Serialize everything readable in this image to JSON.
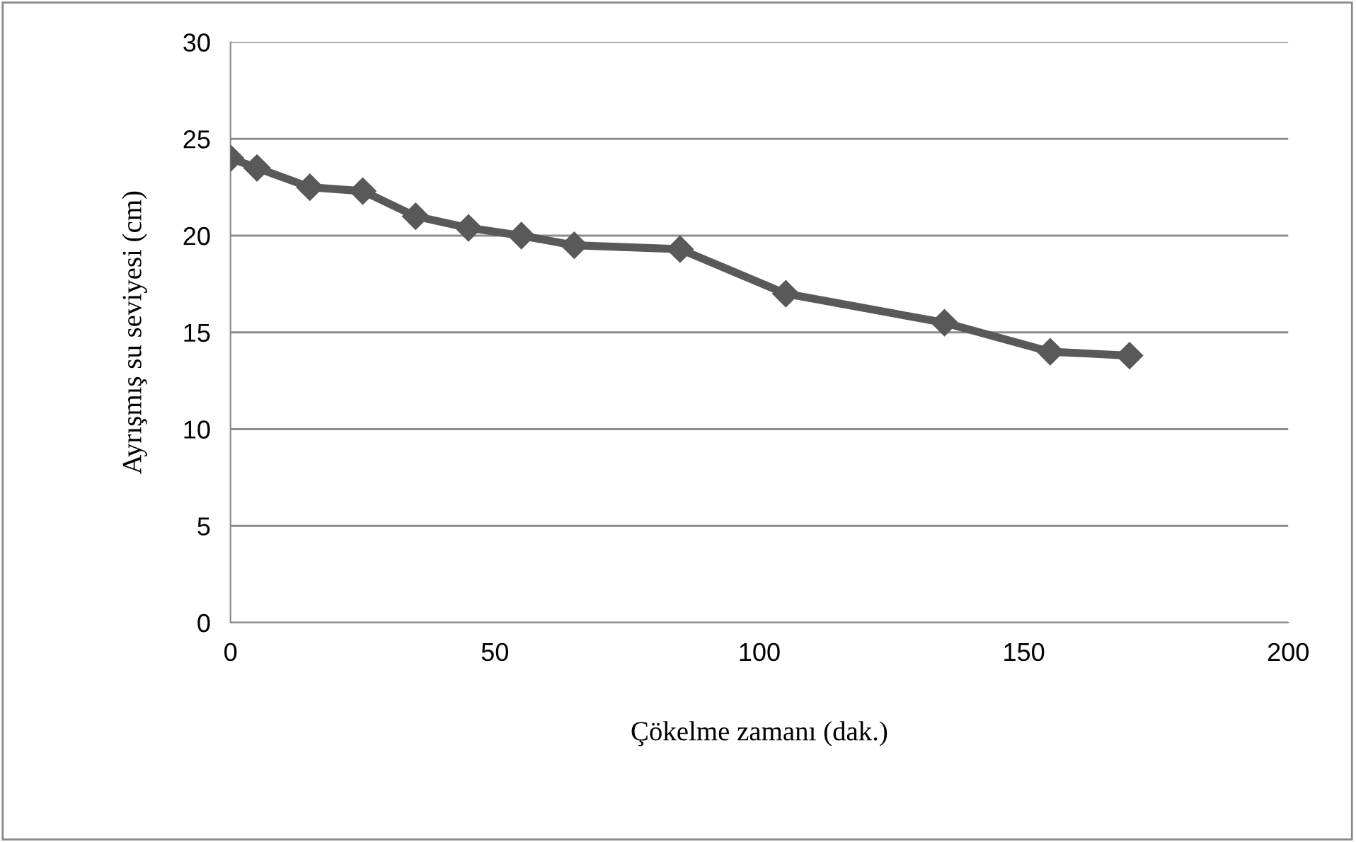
{
  "chart_data": {
    "type": "line",
    "xlabel": "Çökelme zamanı (dak.)",
    "ylabel": "Ayrışmış su seviyesi (cm)",
    "x": [
      0,
      5,
      15,
      25,
      35,
      45,
      55,
      65,
      85,
      105,
      135,
      155,
      170
    ],
    "series": [
      {
        "color": "#595959",
        "values": [
          24,
          23.5,
          22.5,
          22.3,
          21,
          20.4,
          20,
          19.5,
          19.3,
          17,
          15.5,
          14,
          13.8
        ]
      }
    ],
    "xlim": [
      0,
      200
    ],
    "xticks": [
      0,
      50,
      100,
      150,
      200
    ],
    "ylim": [
      0,
      30
    ],
    "yticks": [
      0,
      5,
      10,
      15,
      20,
      25,
      30
    ],
    "grid": "y",
    "marker": "diamond",
    "line_style": "solid",
    "legend": false
  }
}
